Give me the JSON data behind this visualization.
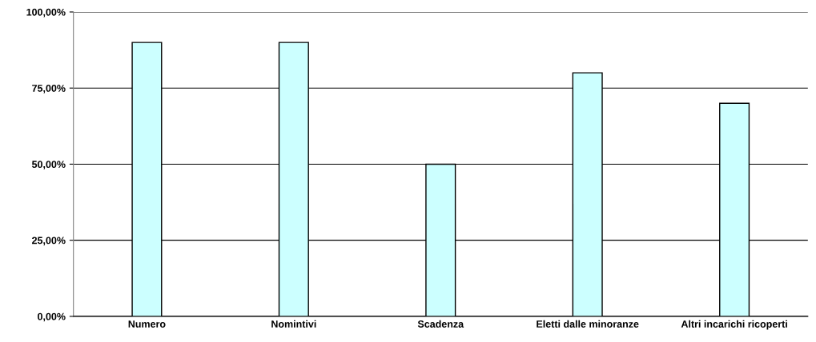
{
  "chart_data": {
    "type": "bar",
    "categories": [
      "Numero",
      "Nomintivi",
      "Scadenza",
      "Eletti dalle minoranze",
      "Altri incarichi ricoperti"
    ],
    "values": [
      90,
      90,
      50,
      80,
      70
    ],
    "color": "#ccffff",
    "ylim": [
      0,
      100
    ],
    "yticks": [
      {
        "value": 0,
        "label": "0,00%"
      },
      {
        "value": 25,
        "label": "25,00%"
      },
      {
        "value": 50,
        "label": "50,00%"
      },
      {
        "value": 75,
        "label": "75,00%"
      },
      {
        "value": 100,
        "label": "100,00%"
      }
    ],
    "grid": "y"
  }
}
